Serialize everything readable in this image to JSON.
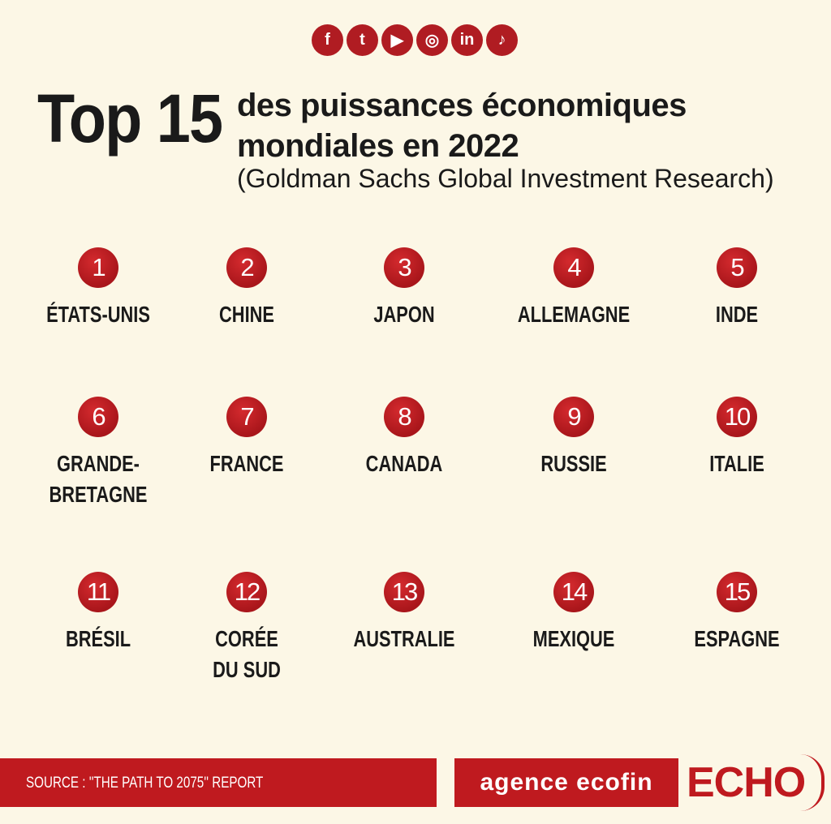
{
  "social_icons": [
    {
      "name": "facebook-icon",
      "glyph": "f"
    },
    {
      "name": "twitter-icon",
      "glyph": "t"
    },
    {
      "name": "youtube-icon",
      "glyph": "▶"
    },
    {
      "name": "instagram-icon",
      "glyph": "◎"
    },
    {
      "name": "linkedin-icon",
      "glyph": "in"
    },
    {
      "name": "tiktok-icon",
      "glyph": "♪"
    }
  ],
  "header": {
    "title": "Top 15",
    "subtitle_line1": "des puissances économiques",
    "subtitle_line2": "mondiales en 2022",
    "subtitle_line3": "(Goldman Sachs Global Investment Research)"
  },
  "ranking": [
    {
      "rank": "1",
      "country": [
        "ÉTATS-UNIS"
      ]
    },
    {
      "rank": "2",
      "country": [
        "CHINE"
      ]
    },
    {
      "rank": "3",
      "country": [
        "JAPON"
      ]
    },
    {
      "rank": "4",
      "country": [
        "ALLEMAGNE"
      ]
    },
    {
      "rank": "5",
      "country": [
        "INDE"
      ]
    },
    {
      "rank": "6",
      "country": [
        "GRANDE-",
        "BRETAGNE"
      ]
    },
    {
      "rank": "7",
      "country": [
        "FRANCE"
      ]
    },
    {
      "rank": "8",
      "country": [
        "CANADA"
      ]
    },
    {
      "rank": "9",
      "country": [
        "RUSSIE"
      ]
    },
    {
      "rank": "10",
      "country": [
        "ITALIE"
      ]
    },
    {
      "rank": "11",
      "country": [
        "BRÉSIL"
      ]
    },
    {
      "rank": "12",
      "country": [
        "CORÉE",
        "DU SUD"
      ]
    },
    {
      "rank": "13",
      "country": [
        "AUSTRALIE"
      ]
    },
    {
      "rank": "14",
      "country": [
        "MEXIQUE"
      ]
    },
    {
      "rank": "15",
      "country": [
        "ESPAGNE"
      ]
    }
  ],
  "footer": {
    "source": "SOURCE : ''THE PATH TO 2075'' REPORT",
    "brand": "agence ecofin",
    "logo": "ECHO"
  },
  "colors": {
    "accent": "#bf1a1f",
    "background": "#fcf7e6"
  }
}
